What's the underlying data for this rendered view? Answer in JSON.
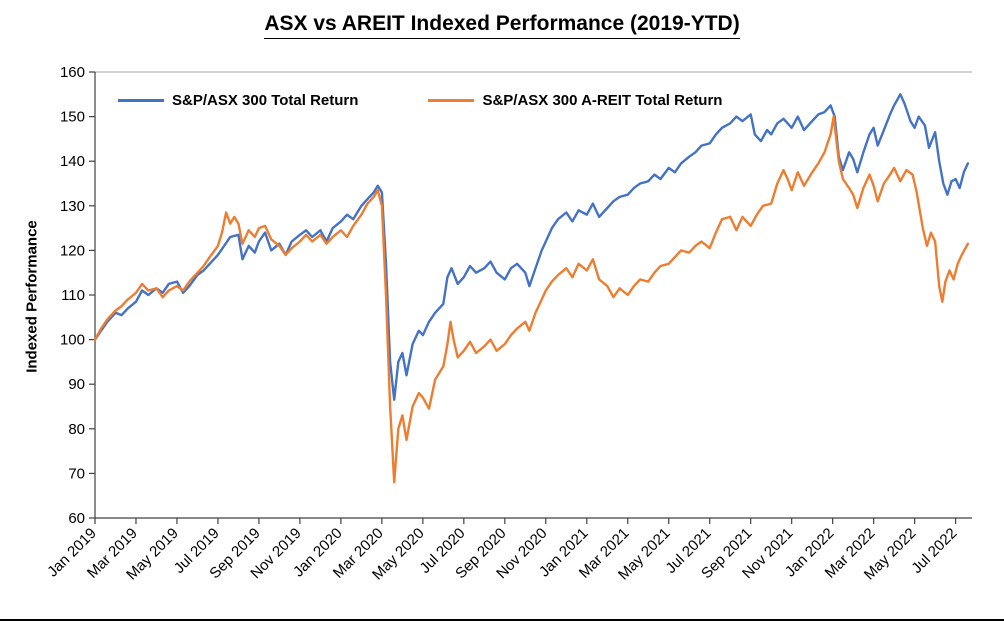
{
  "title": "ASX vs AREIT Indexed Performance (2019-YTD)",
  "chart_data": {
    "type": "line",
    "title": "ASX vs AREIT Indexed Performance (2019-YTD)",
    "xlabel": "",
    "ylabel": "Indexed Performance",
    "ylim": [
      60,
      160
    ],
    "xlim": [
      0,
      42.8
    ],
    "grid": false,
    "legend_position": "top-left-inside",
    "y_ticks": [
      60,
      70,
      80,
      90,
      100,
      110,
      120,
      130,
      140,
      150,
      160
    ],
    "x_tick_months": [
      0,
      2,
      4,
      6,
      8,
      10,
      12,
      14,
      16,
      18,
      20,
      22,
      24,
      26,
      28,
      30,
      32,
      34,
      36,
      38,
      40,
      42
    ],
    "x_tick_labels": [
      "Jan 2019",
      "Mar 2019",
      "May 2019",
      "Jul 2019",
      "Sep 2019",
      "Nov 2019",
      "Jan 2020",
      "Mar 2020",
      "May 2020",
      "Jul 2020",
      "Sep 2020",
      "Nov 2020",
      "Jan 2021",
      "Mar 2021",
      "May 2021",
      "Jul 2021",
      "Sep 2021",
      "Nov 2021",
      "Jan 2022",
      "Mar 2022",
      "May 2022",
      "Jul 2022"
    ],
    "series": [
      {
        "name": "S&P/ASX 300  Total Return",
        "color": "#4472C4",
        "points": [
          [
            0,
            100
          ],
          [
            0.3,
            102
          ],
          [
            0.6,
            104
          ],
          [
            1,
            106
          ],
          [
            1.3,
            105.5
          ],
          [
            1.6,
            107
          ],
          [
            2,
            108.5
          ],
          [
            2.3,
            111
          ],
          [
            2.6,
            110
          ],
          [
            3,
            111.5
          ],
          [
            3.3,
            110.5
          ],
          [
            3.6,
            112.5
          ],
          [
            4,
            113
          ],
          [
            4.3,
            110.5
          ],
          [
            4.6,
            112
          ],
          [
            5,
            114.5
          ],
          [
            5.3,
            115.5
          ],
          [
            5.6,
            117
          ],
          [
            6,
            119
          ],
          [
            6.3,
            121
          ],
          [
            6.6,
            123
          ],
          [
            7,
            123.5
          ],
          [
            7.2,
            118
          ],
          [
            7.5,
            121
          ],
          [
            7.8,
            119.5
          ],
          [
            8,
            122
          ],
          [
            8.3,
            124
          ],
          [
            8.6,
            120
          ],
          [
            9,
            121.5
          ],
          [
            9.3,
            119
          ],
          [
            9.6,
            122
          ],
          [
            10,
            123.5
          ],
          [
            10.3,
            124.5
          ],
          [
            10.6,
            123
          ],
          [
            11,
            124.5
          ],
          [
            11.3,
            122
          ],
          [
            11.6,
            125
          ],
          [
            12,
            126.5
          ],
          [
            12.3,
            128
          ],
          [
            12.6,
            127
          ],
          [
            13,
            130
          ],
          [
            13.3,
            131.5
          ],
          [
            13.6,
            133
          ],
          [
            13.8,
            134.5
          ],
          [
            14,
            133
          ],
          [
            14.2,
            117
          ],
          [
            14.4,
            95
          ],
          [
            14.6,
            86.5
          ],
          [
            14.8,
            95
          ],
          [
            15,
            97
          ],
          [
            15.2,
            92
          ],
          [
            15.5,
            99
          ],
          [
            15.8,
            102
          ],
          [
            16,
            101
          ],
          [
            16.3,
            104
          ],
          [
            16.6,
            106
          ],
          [
            17,
            108
          ],
          [
            17.2,
            114
          ],
          [
            17.4,
            116
          ],
          [
            17.7,
            112.5
          ],
          [
            18,
            114
          ],
          [
            18.3,
            116.5
          ],
          [
            18.6,
            115
          ],
          [
            19,
            116
          ],
          [
            19.3,
            117.5
          ],
          [
            19.6,
            115
          ],
          [
            20,
            113.5
          ],
          [
            20.3,
            116
          ],
          [
            20.6,
            117
          ],
          [
            21,
            115
          ],
          [
            21.2,
            112
          ],
          [
            21.5,
            116
          ],
          [
            21.8,
            120
          ],
          [
            22,
            122
          ],
          [
            22.3,
            125
          ],
          [
            22.6,
            127
          ],
          [
            23,
            128.5
          ],
          [
            23.3,
            126.5
          ],
          [
            23.6,
            129
          ],
          [
            24,
            128
          ],
          [
            24.3,
            130.5
          ],
          [
            24.6,
            127.5
          ],
          [
            25,
            129.5
          ],
          [
            25.3,
            131
          ],
          [
            25.6,
            132
          ],
          [
            26,
            132.5
          ],
          [
            26.3,
            134
          ],
          [
            26.6,
            135
          ],
          [
            27,
            135.5
          ],
          [
            27.3,
            137
          ],
          [
            27.6,
            136
          ],
          [
            28,
            138.5
          ],
          [
            28.3,
            137.5
          ],
          [
            28.6,
            139.5
          ],
          [
            29,
            141
          ],
          [
            29.3,
            142
          ],
          [
            29.6,
            143.5
          ],
          [
            30,
            144
          ],
          [
            30.3,
            146
          ],
          [
            30.6,
            147.5
          ],
          [
            31,
            148.5
          ],
          [
            31.3,
            150
          ],
          [
            31.6,
            149
          ],
          [
            32,
            150.5
          ],
          [
            32.2,
            146
          ],
          [
            32.5,
            144.5
          ],
          [
            32.8,
            147
          ],
          [
            33,
            146
          ],
          [
            33.3,
            148.5
          ],
          [
            33.6,
            149.5
          ],
          [
            34,
            147.5
          ],
          [
            34.3,
            150
          ],
          [
            34.6,
            147
          ],
          [
            35,
            149
          ],
          [
            35.3,
            150.5
          ],
          [
            35.6,
            151
          ],
          [
            35.9,
            152.5
          ],
          [
            36.1,
            150
          ],
          [
            36.3,
            141
          ],
          [
            36.5,
            138
          ],
          [
            36.8,
            142
          ],
          [
            37,
            140.5
          ],
          [
            37.2,
            137.5
          ],
          [
            37.5,
            142
          ],
          [
            37.8,
            146
          ],
          [
            38,
            147.5
          ],
          [
            38.2,
            143.5
          ],
          [
            38.5,
            147
          ],
          [
            38.8,
            150.5
          ],
          [
            39,
            152.5
          ],
          [
            39.3,
            155
          ],
          [
            39.5,
            153
          ],
          [
            39.8,
            149
          ],
          [
            40,
            147.5
          ],
          [
            40.2,
            150
          ],
          [
            40.5,
            148
          ],
          [
            40.7,
            143
          ],
          [
            41,
            146.5
          ],
          [
            41.2,
            140
          ],
          [
            41.4,
            135
          ],
          [
            41.6,
            132.5
          ],
          [
            41.8,
            135.5
          ],
          [
            42,
            136
          ],
          [
            42.2,
            134
          ],
          [
            42.4,
            137.5
          ],
          [
            42.6,
            139.5
          ]
        ]
      },
      {
        "name": "S&P/ASX 300 A-REIT Total Return",
        "color": "#ED7D31",
        "points": [
          [
            0,
            100
          ],
          [
            0.3,
            102.5
          ],
          [
            0.6,
            104.5
          ],
          [
            1,
            106.5
          ],
          [
            1.3,
            107.5
          ],
          [
            1.6,
            109
          ],
          [
            2,
            110.5
          ],
          [
            2.3,
            112.5
          ],
          [
            2.6,
            111
          ],
          [
            3,
            111.5
          ],
          [
            3.3,
            109.5
          ],
          [
            3.6,
            111
          ],
          [
            4,
            112
          ],
          [
            4.3,
            111
          ],
          [
            4.6,
            113
          ],
          [
            5,
            115
          ],
          [
            5.3,
            116.5
          ],
          [
            5.6,
            118.5
          ],
          [
            6,
            121
          ],
          [
            6.2,
            124
          ],
          [
            6.4,
            128.5
          ],
          [
            6.6,
            126
          ],
          [
            6.8,
            127.5
          ],
          [
            7,
            126
          ],
          [
            7.2,
            121.5
          ],
          [
            7.5,
            124.5
          ],
          [
            7.8,
            123
          ],
          [
            8,
            125
          ],
          [
            8.3,
            125.5
          ],
          [
            8.6,
            122.5
          ],
          [
            9,
            121
          ],
          [
            9.3,
            119
          ],
          [
            9.6,
            120.5
          ],
          [
            10,
            122
          ],
          [
            10.3,
            123.5
          ],
          [
            10.6,
            122
          ],
          [
            11,
            123.5
          ],
          [
            11.3,
            121.5
          ],
          [
            11.6,
            123
          ],
          [
            12,
            124.5
          ],
          [
            12.3,
            123
          ],
          [
            12.6,
            125.5
          ],
          [
            13,
            128
          ],
          [
            13.3,
            130.5
          ],
          [
            13.6,
            132
          ],
          [
            13.8,
            133.5
          ],
          [
            14,
            130
          ],
          [
            14.2,
            110
          ],
          [
            14.4,
            85
          ],
          [
            14.6,
            68
          ],
          [
            14.8,
            80
          ],
          [
            15,
            83
          ],
          [
            15.2,
            77.5
          ],
          [
            15.5,
            85
          ],
          [
            15.8,
            88
          ],
          [
            16,
            87
          ],
          [
            16.3,
            84.5
          ],
          [
            16.6,
            91
          ],
          [
            17,
            94
          ],
          [
            17.2,
            99
          ],
          [
            17.35,
            104
          ],
          [
            17.5,
            100
          ],
          [
            17.7,
            96
          ],
          [
            18,
            97.5
          ],
          [
            18.3,
            99.5
          ],
          [
            18.6,
            97
          ],
          [
            19,
            98.5
          ],
          [
            19.3,
            100
          ],
          [
            19.6,
            97.5
          ],
          [
            20,
            99
          ],
          [
            20.3,
            101
          ],
          [
            20.6,
            102.5
          ],
          [
            21,
            104
          ],
          [
            21.2,
            102
          ],
          [
            21.5,
            106
          ],
          [
            21.8,
            109
          ],
          [
            22,
            111
          ],
          [
            22.3,
            113
          ],
          [
            22.6,
            114.5
          ],
          [
            23,
            116
          ],
          [
            23.3,
            114
          ],
          [
            23.6,
            117
          ],
          [
            24,
            115.5
          ],
          [
            24.3,
            118
          ],
          [
            24.6,
            113.5
          ],
          [
            25,
            112
          ],
          [
            25.3,
            109.5
          ],
          [
            25.6,
            111.5
          ],
          [
            26,
            110
          ],
          [
            26.3,
            112
          ],
          [
            26.6,
            113.5
          ],
          [
            27,
            113
          ],
          [
            27.3,
            115
          ],
          [
            27.6,
            116.5
          ],
          [
            28,
            117
          ],
          [
            28.3,
            118.5
          ],
          [
            28.6,
            120
          ],
          [
            29,
            119.5
          ],
          [
            29.3,
            121
          ],
          [
            29.6,
            122
          ],
          [
            30,
            120.5
          ],
          [
            30.3,
            124
          ],
          [
            30.6,
            127
          ],
          [
            31,
            127.5
          ],
          [
            31.3,
            124.5
          ],
          [
            31.6,
            127.5
          ],
          [
            32,
            125.5
          ],
          [
            32.3,
            128
          ],
          [
            32.6,
            130
          ],
          [
            33,
            130.5
          ],
          [
            33.3,
            135
          ],
          [
            33.6,
            138
          ],
          [
            33.8,
            136
          ],
          [
            34,
            133.5
          ],
          [
            34.3,
            137.5
          ],
          [
            34.6,
            134.5
          ],
          [
            35,
            137.5
          ],
          [
            35.3,
            139.5
          ],
          [
            35.6,
            142
          ],
          [
            35.9,
            146
          ],
          [
            36.05,
            150
          ],
          [
            36.3,
            140
          ],
          [
            36.5,
            136
          ],
          [
            36.8,
            134
          ],
          [
            37,
            132.5
          ],
          [
            37.2,
            129.5
          ],
          [
            37.5,
            134
          ],
          [
            37.8,
            137
          ],
          [
            38,
            134.5
          ],
          [
            38.2,
            131
          ],
          [
            38.5,
            135
          ],
          [
            38.8,
            137
          ],
          [
            39,
            138.5
          ],
          [
            39.3,
            135.5
          ],
          [
            39.6,
            138
          ],
          [
            39.9,
            137
          ],
          [
            40.1,
            133
          ],
          [
            40.4,
            125
          ],
          [
            40.6,
            121
          ],
          [
            40.8,
            124
          ],
          [
            41,
            122
          ],
          [
            41.2,
            112
          ],
          [
            41.35,
            108.5
          ],
          [
            41.5,
            113
          ],
          [
            41.7,
            115.5
          ],
          [
            41.9,
            113.5
          ],
          [
            42.1,
            117
          ],
          [
            42.3,
            119
          ],
          [
            42.6,
            121.5
          ]
        ]
      }
    ]
  },
  "colors": {
    "axis": "#404040",
    "plot_top_border": "#a6a6a6",
    "text": "#000000"
  }
}
